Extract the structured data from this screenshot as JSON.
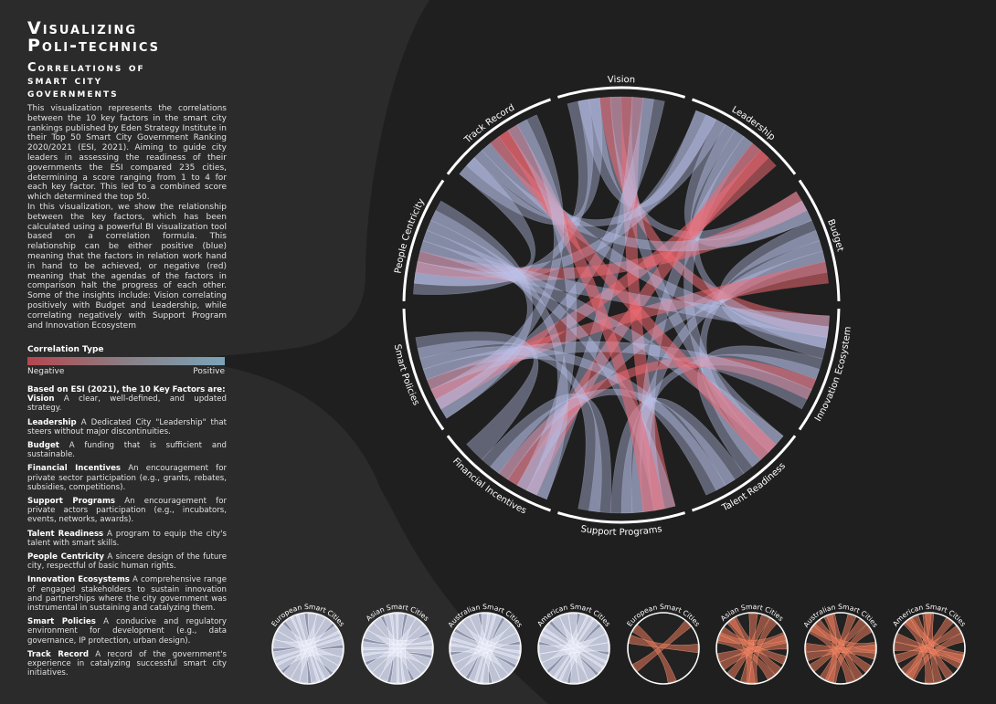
{
  "title": "Visualizing\nPoli-technics",
  "subtitle": "Correlations of\nsmart city\ngovernments",
  "intro": [
    "This visualization represents the correlations between the 10 key factors in the smart city rankings published by Eden Strategy Institute in their Top 50 Smart City Government Ranking 2020/2021 (ESI, 2021). Aiming to guide city leaders in assessing the readiness of their governments the ESI compared 235 cities, determining a score ranging from 1 to 4 for each key factor. This led to a combined score which determined the top 50.",
    "In this visualization, we show the relationship between the key factors, which has been calculated using a powerful BI visualization tool based on a correlation formula. This relationship can be either positive (blue) meaning that the factors in relation work hand in hand to be achieved, or negative (red) meaning that the agendas of the factors in comparison halt the progress of each other. Some of the insights include: Vision correlating positively with Budget and Leadership, while correlating negatively with Support Program and Innovation Ecosystem"
  ],
  "legend": {
    "title": "Correlation Type",
    "negative": "Negative",
    "positive": "Positive",
    "colors": {
      "negative": "#b5464f",
      "positive": "#7aa4b8"
    }
  },
  "factors_header": "Based on ESI (2021), the 10 Key Factors are:",
  "factors": [
    {
      "name": "Vision",
      "desc": "A clear, well-defined, and updated strategy."
    },
    {
      "name": "Leadership",
      "desc": "A Dedicated City \"Leadership\" that steers without major discontinuities."
    },
    {
      "name": "Budget",
      "desc": "A funding that is sufficient and sustainable."
    },
    {
      "name": "Financial Incentives",
      "desc": "An encouragement for private sector participation (e.g., grants, rebates, subsidies, competitions)."
    },
    {
      "name": "Support Programs",
      "desc": "An encouragement for private actors participation (e.g., incubators, events, networks, awards)."
    },
    {
      "name": "Talent Readiness",
      "desc": "A program to equip the city's talent with smart skills."
    },
    {
      "name": "People Centricity",
      "desc": "A sincere design of the future city, respectful of basic human rights."
    },
    {
      "name": "Innovation Ecosystems",
      "desc": "A comprehensive range of engaged stakeholders to sustain innovation and partnerships where the city government was instrumental in sustaining and catalyzing them."
    },
    {
      "name": "Smart Policies",
      "desc": "A conducive and regulatory environment for development (e.g., data governance, IP protection, urban design)."
    },
    {
      "name": "Track Record",
      "desc": "A record of the government's experience in catalyzing successful smart city initiatives."
    }
  ],
  "chord_labels": [
    "Vision",
    "Leadership",
    "Budget",
    "Innovation Ecosystem",
    "Talent Readiness",
    "Support Programs",
    "Financial Incentives",
    "Smart Policies",
    "People Centricity",
    "Track Record"
  ],
  "mini_charts": [
    {
      "label": "European Smart Cities",
      "type": "positive"
    },
    {
      "label": "Asian Smart Cities",
      "type": "positive"
    },
    {
      "label": "Australian Smart Cities",
      "type": "positive"
    },
    {
      "label": "American Smart Cities",
      "type": "positive"
    },
    {
      "label": "European Smart Cities",
      "type": "negative"
    },
    {
      "label": "Asian Smart Cities",
      "type": "negative"
    },
    {
      "label": "Australian Smart Cities",
      "type": "negative"
    },
    {
      "label": "American Smart Cities",
      "type": "negative"
    }
  ],
  "colors": {
    "background": "#2b2b2b",
    "blob": "#1c1c1c",
    "ribbon_positive": "#b9c2ea",
    "ribbon_negative": "#ee6a72"
  }
}
